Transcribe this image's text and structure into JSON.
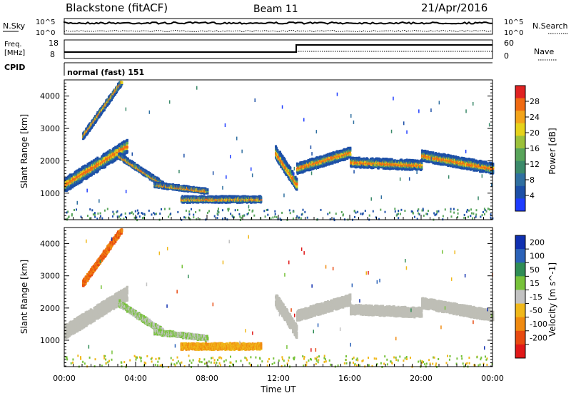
{
  "header": {
    "title": "Blackstone (fitACF)",
    "beam": "Beam 11",
    "date": "21/Apr/2016"
  },
  "noise_panel": {
    "left_label": "N.Sky",
    "right_label": "N.Search",
    "left_ticks": [
      "10^5",
      "10^0"
    ],
    "right_ticks": [
      "10^5",
      "10^0"
    ]
  },
  "freq_panel": {
    "left_label_line1": "Freq.",
    "left_label_line2": "[MHz]",
    "left_ticks": [
      "18",
      "8"
    ],
    "right_label": "Nave",
    "right_ticks": [
      "60",
      "0"
    ]
  },
  "cpid": {
    "label": "CPID",
    "value": "normal (fast) 151"
  },
  "chart_data": [
    {
      "type": "heatmap",
      "quantity": "Power",
      "ylabel": "Slant Range [km]",
      "colorbar_label": "Power [dB]",
      "colorbar_ticks": [
        "4",
        "8",
        "12",
        "16",
        "20",
        "24",
        "28"
      ],
      "colorbar_range": [
        0,
        30
      ],
      "y_ticks": [
        "1000",
        "2000",
        "3000",
        "4000"
      ],
      "ylim": [
        180,
        4500
      ],
      "colors": [
        "#1e3cff",
        "#1c4fa7",
        "#2f6fa0",
        "#3b8a6a",
        "#58a45a",
        "#9cc13a",
        "#e6d21a",
        "#f3a41a",
        "#f06a12",
        "#e02222"
      ]
    },
    {
      "type": "heatmap",
      "quantity": "Velocity",
      "ylabel": "Slant Range [km]",
      "colorbar_label": "Velocity [m s^-1]",
      "colorbar_ticks": [
        "200",
        "100",
        "50",
        "15",
        "-15",
        "-50",
        "-100",
        "-200"
      ],
      "y_ticks": [
        "1000",
        "2000",
        "3000",
        "4000"
      ],
      "ylim": [
        180,
        4500
      ],
      "colors": [
        "#1030b0",
        "#2b62b8",
        "#2f8d55",
        "#77c23a",
        "#c2c2c2",
        "#f0b81a",
        "#f08a10",
        "#e84a10",
        "#e01818"
      ],
      "ground_scatter_color": "#bebeb6"
    }
  ],
  "x_axis": {
    "label": "Time UT",
    "ticks": [
      "00:00",
      "04:00",
      "08:00",
      "12:00",
      "16:00",
      "20:00",
      "00:00"
    ],
    "range_hours": [
      0,
      24
    ]
  }
}
